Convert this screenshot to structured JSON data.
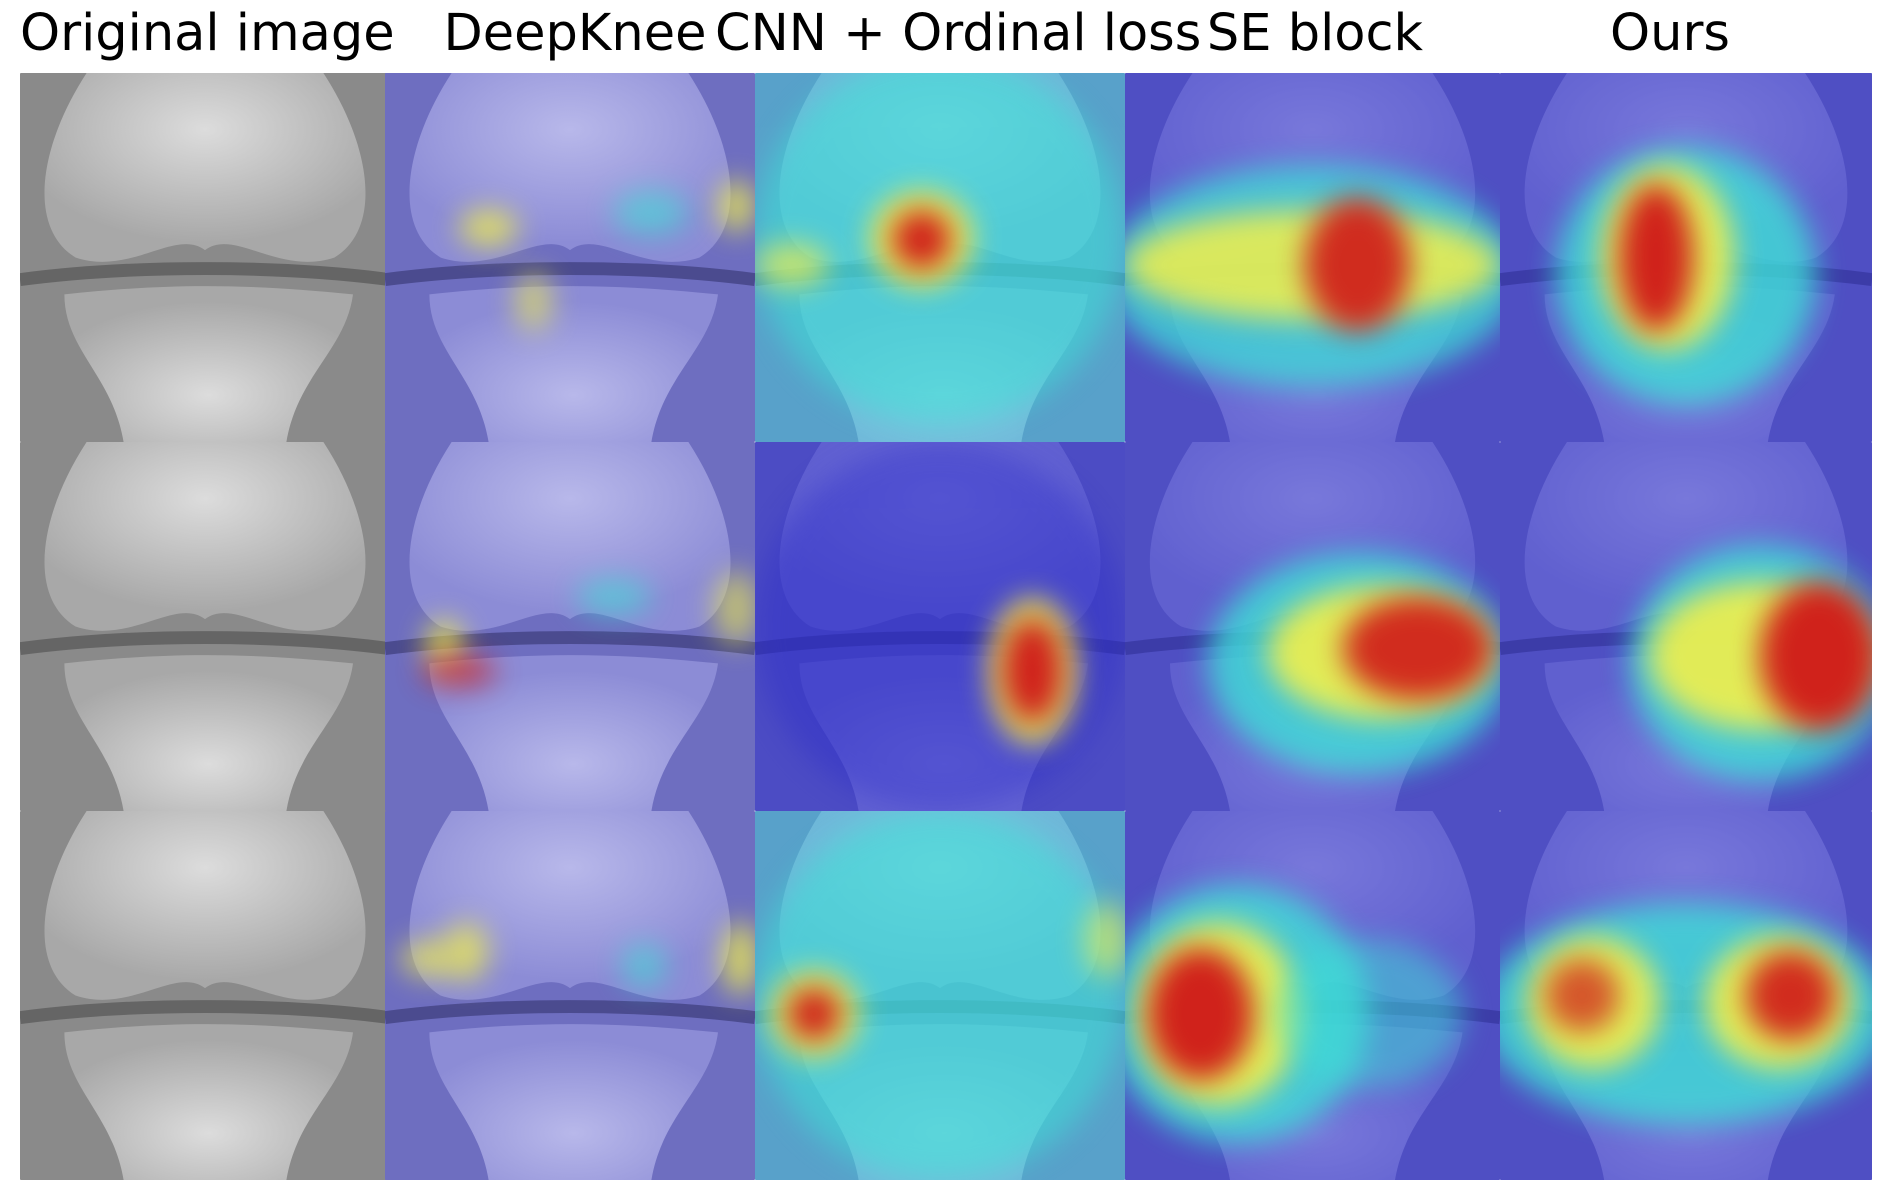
{
  "figure": {
    "columns": [
      {
        "title": "Original image"
      },
      {
        "title": "DeepKnee"
      },
      {
        "title": "CNN + Ordinal loss"
      },
      {
        "title": "SE block"
      },
      {
        "title": "Ours"
      }
    ],
    "rows": 3,
    "colors": {
      "xray_light": "#d6d6d6",
      "xray_dark": "#5a5a5a",
      "deepknee_tint": "#8d8ddc",
      "heat_low": "#2a2ac8",
      "heat_mid": "#3ee0d6",
      "heat_high": "#f3f04a",
      "heat_peak": "#d01818"
    }
  }
}
